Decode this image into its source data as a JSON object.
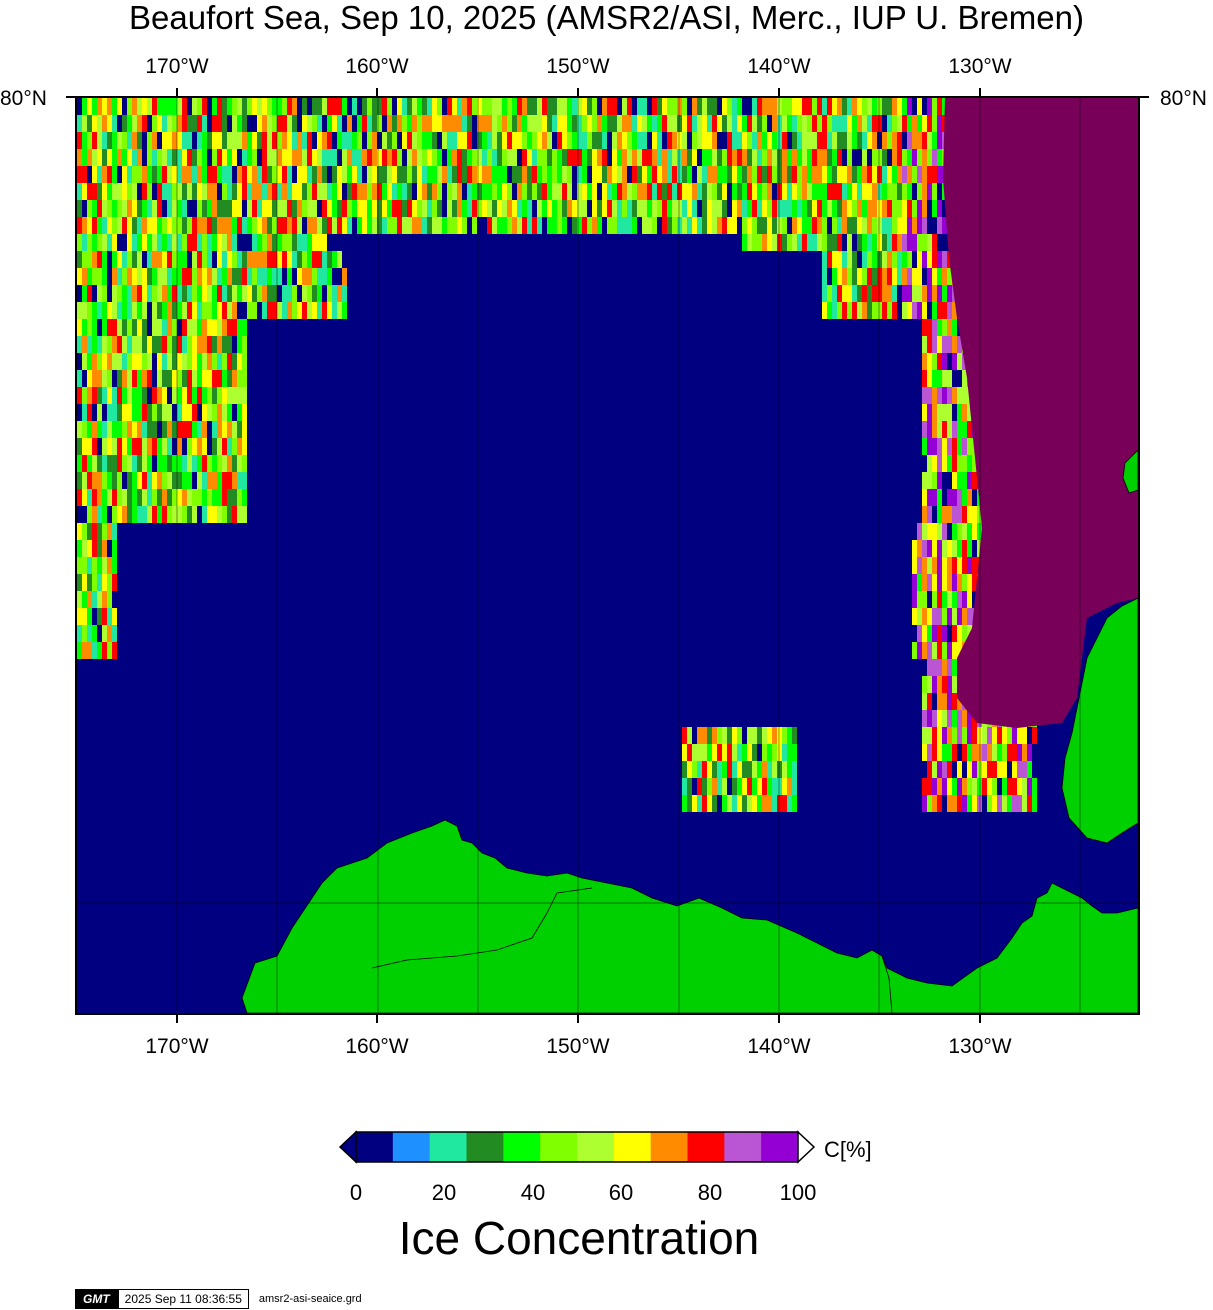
{
  "title": "Beaufort Sea, Sep 10, 2025 (AMSR2/ASI, Merc., IUP U. Bremen)",
  "map": {
    "longitude_labels": [
      "170°W",
      "160°W",
      "150°W",
      "140°W",
      "130°W"
    ],
    "latitude_label": "80°N",
    "colors": {
      "ocean_open_water": "#000080",
      "land": "#00d000",
      "land_mask_no_data": "#780059",
      "coastline": "#000000"
    }
  },
  "legend": {
    "unit_label": "C[%]",
    "ticks": [
      "0",
      "20",
      "40",
      "60",
      "80",
      "100"
    ],
    "colors": [
      "#000080",
      "#1e90ff",
      "#20e8a0",
      "#228b22",
      "#00ff00",
      "#7fff00",
      "#adff2f",
      "#ffff00",
      "#ff8c00",
      "#ff0000",
      "#ba55d3",
      "#9400d3"
    ],
    "title": "Ice Concentration"
  },
  "footer": {
    "logo": "GMT",
    "timestamp": "2025 Sep 11 08:36:55",
    "filename": "amsr2-asi-seaice.grd"
  }
}
